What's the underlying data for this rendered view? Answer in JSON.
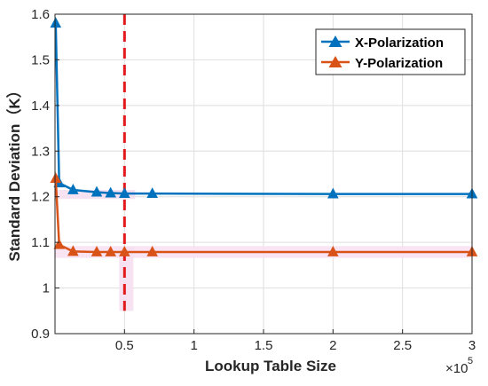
{
  "chart_data": {
    "type": "line",
    "title": "",
    "xlabel": "Lookup Table Size",
    "ylabel": "Standard Deviation（K）",
    "x_exponent_label": "×10",
    "x_exponent_power": "5",
    "xlim": [
      0,
      3
    ],
    "ylim": [
      0.9,
      1.6
    ],
    "grid": true,
    "legend_position": "top-right",
    "x_ticks": [
      0.5,
      1,
      1.5,
      2,
      2.5,
      3
    ],
    "x_tick_labels": [
      "0.5",
      "1",
      "1.5",
      "2",
      "2.5",
      "3"
    ],
    "y_ticks": [
      0.9,
      1,
      1.1,
      1.2,
      1.3,
      1.4,
      1.5,
      1.6
    ],
    "y_tick_labels": [
      "0.9",
      "1",
      "1.1",
      "1.2",
      "1.3",
      "1.4",
      "1.5",
      "1.6"
    ],
    "reference_line_x": 0.5,
    "reference_line_color": "#e31a1c",
    "x": [
      0.005,
      0.03,
      0.13,
      0.3,
      0.4,
      0.5,
      0.7,
      2.0,
      3.0
    ],
    "series": [
      {
        "name": "X-Polarization",
        "color": "#0072bd",
        "marker": "triangle",
        "values": [
          1.58,
          1.23,
          1.215,
          1.21,
          1.208,
          1.207,
          1.207,
          1.206,
          1.206
        ]
      },
      {
        "name": "Y-Polarization",
        "color": "#d95319",
        "marker": "triangle",
        "values": [
          1.24,
          1.095,
          1.08,
          1.079,
          1.079,
          1.079,
          1.079,
          1.079,
          1.079
        ]
      }
    ]
  }
}
